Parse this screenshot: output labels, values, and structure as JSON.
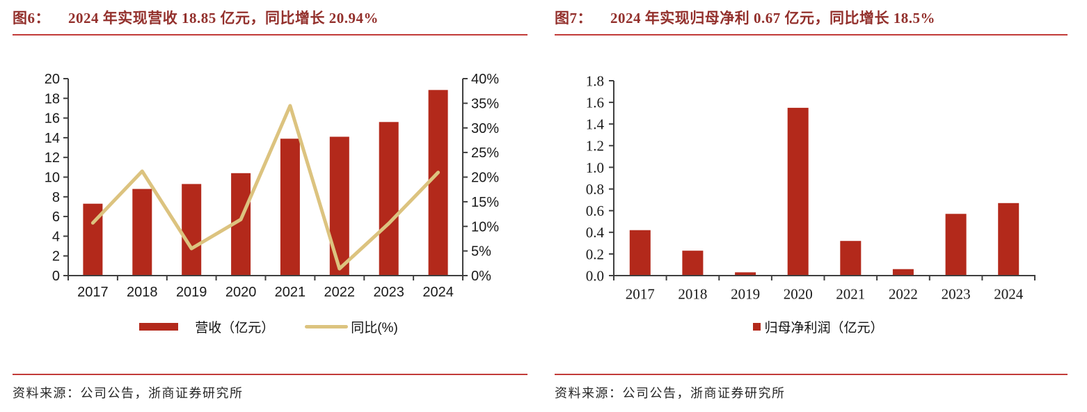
{
  "colors": {
    "bar": "#b3291b",
    "line": "#dcc37f",
    "title_text": "#93302c",
    "red_rule": "#c23b38",
    "axis": "#3f3f3f",
    "tick_label": "#1a1a1a"
  },
  "figures": [
    {
      "tag": "图6：",
      "title": "2024 年实现营收 18.85 亿元，同比增长 20.94%",
      "legend": [
        {
          "kind": "bar-swatch",
          "label": "营收（亿元）"
        },
        {
          "kind": "line-swatch",
          "label": "同比(%)"
        }
      ],
      "source": "资料来源：公司公告，浙商证券研究所"
    },
    {
      "tag": "图7：",
      "title": "2024 年实现归母净利 0.67 亿元，同比增长 18.5%",
      "legend": [
        {
          "kind": "square-swatch",
          "label": "归母净利润（亿元）"
        }
      ],
      "source": "资料来源：公司公告，浙商证券研究所"
    }
  ],
  "chart_data": [
    {
      "type": "bar",
      "title": "2024 年实现营收 18.85 亿元，同比增长 20.94%",
      "categories": [
        "2017",
        "2018",
        "2019",
        "2020",
        "2021",
        "2022",
        "2023",
        "2024"
      ],
      "series": [
        {
          "name": "营收（亿元）",
          "type": "bar",
          "axis": "left",
          "values": [
            7.3,
            8.8,
            9.3,
            10.4,
            13.9,
            14.1,
            15.6,
            18.85
          ]
        },
        {
          "name": "同比(%)",
          "type": "line",
          "axis": "right",
          "values": [
            10.7,
            21.2,
            5.5,
            11.4,
            34.5,
            1.4,
            10.6,
            20.94
          ]
        }
      ],
      "left_axis": {
        "min": 0,
        "max": 20,
        "tick_labels": [
          "0",
          "2",
          "4",
          "6",
          "8",
          "10",
          "12",
          "14",
          "16",
          "18",
          "20"
        ]
      },
      "right_axis": {
        "min": 0,
        "max": 40,
        "tick_labels": [
          "0%",
          "5%",
          "10%",
          "15%",
          "20%",
          "25%",
          "30%",
          "35%",
          "40%"
        ]
      },
      "grid": false,
      "legend_position": "bottom"
    },
    {
      "type": "bar",
      "title": "2024 年实现归母净利 0.67 亿元，同比增长 18.5%",
      "categories": [
        "2017",
        "2018",
        "2019",
        "2020",
        "2021",
        "2022",
        "2023",
        "2024"
      ],
      "series": [
        {
          "name": "归母净利润（亿元）",
          "type": "bar",
          "axis": "left",
          "values": [
            0.42,
            0.23,
            0.03,
            1.55,
            0.32,
            0.06,
            0.57,
            0.67
          ]
        }
      ],
      "left_axis": {
        "min": 0,
        "max": 1.8,
        "tick_labels": [
          "0.0",
          "0.2",
          "0.4",
          "0.6",
          "0.8",
          "1.0",
          "1.2",
          "1.4",
          "1.6",
          "1.8"
        ]
      },
      "grid": false,
      "legend_position": "bottom"
    }
  ]
}
